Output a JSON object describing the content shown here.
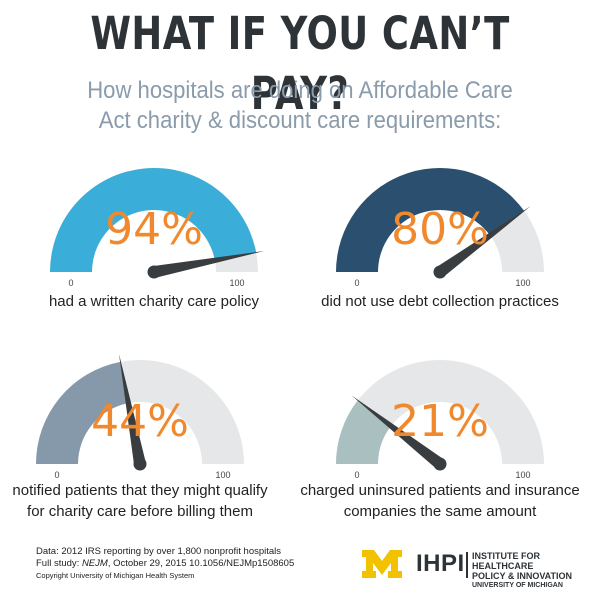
{
  "header": {
    "title": "WHAT IF YOU CAN’T PAY?",
    "subtitle_line1": "How hospitals are doing on Affordable Care",
    "subtitle_line2": "Act charity & discount care requirements:"
  },
  "chart_data": [
    {
      "type": "gauge",
      "value": 94,
      "value_label": "94%",
      "min": 0,
      "max": 100,
      "min_label": "0",
      "max_label": "100",
      "caption": [
        "had a written charity care policy"
      ],
      "color": "#3aaed8"
    },
    {
      "type": "gauge",
      "value": 80,
      "value_label": "80%",
      "min": 0,
      "max": 100,
      "min_label": "0",
      "max_label": "100",
      "caption": [
        "did not use debt collection practices"
      ],
      "color": "#2b4f6e"
    },
    {
      "type": "gauge",
      "value": 44,
      "value_label": "44%",
      "min": 0,
      "max": 100,
      "min_label": "0",
      "max_label": "100",
      "caption": [
        "notified patients that they might qualify",
        "for charity care before billing them"
      ],
      "color": "#8599ab"
    },
    {
      "type": "gauge",
      "value": 21,
      "value_label": "21%",
      "min": 0,
      "max": 100,
      "min_label": "0",
      "max_label": "100",
      "caption": [
        "charged uninsured patients and insurance",
        "companies the same amount"
      ],
      "color": "#aabfbf"
    }
  ],
  "colors": {
    "track": "#e6e7e8",
    "needle": "#3a3d40",
    "value_text": "#f0892d",
    "title": "#2e3338",
    "subtitle": "#8a9bab"
  },
  "footer": {
    "line1": "Data: 2012 IRS reporting by over 1,800 nonprofit hospitals",
    "line2_prefix": "Full study: ",
    "line2_journal": "NEJM",
    "line2_rest": ", October 29, 2015  10.1056/NEJMp1508605",
    "copyright": "Copyright University of Michigan Health System"
  },
  "logo": {
    "mark": "M",
    "name": "IHPI",
    "line1": "INSTITUTE FOR HEALTHCARE",
    "line2": "POLICY & INNOVATION",
    "line3": "UNIVERSITY OF MICHIGAN"
  }
}
